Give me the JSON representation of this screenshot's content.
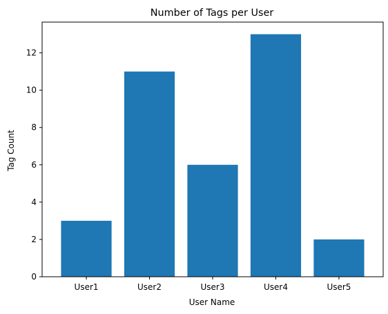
{
  "chart_data": {
    "type": "bar",
    "title": "Number of Tags per User",
    "xlabel": "User Name",
    "ylabel": "Tag Count",
    "categories": [
      "User1",
      "User2",
      "User3",
      "User4",
      "User5"
    ],
    "values": [
      3,
      11,
      6,
      13,
      2
    ],
    "ylim": [
      0,
      13.65
    ],
    "yticks": [
      0,
      2,
      4,
      6,
      8,
      10,
      12
    ],
    "grid": false,
    "legend": "none",
    "bar_color": "#1f77b4"
  }
}
